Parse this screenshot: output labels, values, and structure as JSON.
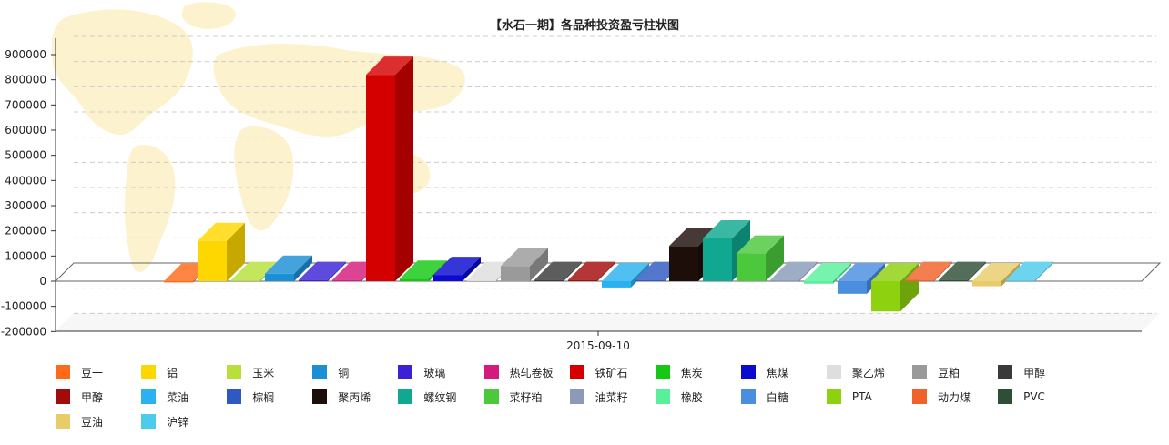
{
  "chart_data": {
    "type": "bar",
    "title": "【水石一期】各品种投资盈亏柱状图",
    "xlabel": "",
    "ylabel": "",
    "categories": [
      "2015-09-10"
    ],
    "ylim": [
      -200000,
      900000
    ],
    "yticks": [
      -200000,
      -100000,
      0,
      100000,
      200000,
      300000,
      400000,
      500000,
      600000,
      700000,
      800000,
      900000
    ],
    "grid": true,
    "legend_position": "bottom",
    "series": [
      {
        "name": "豆一",
        "color": "#ff6a1a",
        "values": [
          -5000
        ]
      },
      {
        "name": "铝",
        "color": "#ffd700",
        "values": [
          160000
        ]
      },
      {
        "name": "玉米",
        "color": "#b7e03a",
        "values": [
          5000
        ]
      },
      {
        "name": "铜",
        "color": "#1b8fd6",
        "values": [
          30000
        ]
      },
      {
        "name": "玻璃",
        "color": "#3b22d4",
        "values": [
          5000
        ]
      },
      {
        "name": "热轧卷板",
        "color": "#d41a7a",
        "values": [
          5000
        ]
      },
      {
        "name": "铁矿石",
        "color": "#d40000",
        "values": [
          820000
        ]
      },
      {
        "name": "焦炭",
        "color": "#14c814",
        "values": [
          10000
        ]
      },
      {
        "name": "焦煤",
        "color": "#0a0ad0",
        "values": [
          25000
        ]
      },
      {
        "name": "聚乙烯",
        "color": "#dedede",
        "values": [
          5000
        ]
      },
      {
        "name": "豆粕",
        "color": "#9a9a9a",
        "values": [
          60000
        ]
      },
      {
        "name": "甲醇",
        "color": "#3a3a3a",
        "values": [
          5000
        ]
      },
      {
        "name": "甲醇",
        "color": "#a30a0a",
        "values": [
          5000
        ]
      },
      {
        "name": "菜油",
        "color": "#2ab2f0",
        "values": [
          -25000
        ]
      },
      {
        "name": "棕榈",
        "color": "#2e58c2",
        "values": [
          5000
        ]
      },
      {
        "name": "聚丙烯",
        "color": "#1e0e0a",
        "values": [
          140000
        ]
      },
      {
        "name": "螺纹钢",
        "color": "#10a890",
        "values": [
          170000
        ]
      },
      {
        "name": "菜籽粕",
        "color": "#4cc83c",
        "values": [
          110000
        ]
      },
      {
        "name": "油菜籽",
        "color": "#8a9ab8",
        "values": [
          5000
        ]
      },
      {
        "name": "橡胶",
        "color": "#58f09a",
        "values": [
          -10000
        ]
      },
      {
        "name": "白糖",
        "color": "#4a8ee0",
        "values": [
          -50000
        ]
      },
      {
        "name": "PTA",
        "color": "#8ed10e",
        "values": [
          -120000
        ]
      },
      {
        "name": "动力煤",
        "color": "#f0622a",
        "values": [
          5000
        ]
      },
      {
        "name": "PVC",
        "color": "#2e4e36",
        "values": [
          5000
        ]
      },
      {
        "name": "豆油",
        "color": "#e8cc6a",
        "values": [
          -20000
        ]
      },
      {
        "name": "沪锌",
        "color": "#4ccbea",
        "values": [
          5000
        ]
      }
    ]
  }
}
